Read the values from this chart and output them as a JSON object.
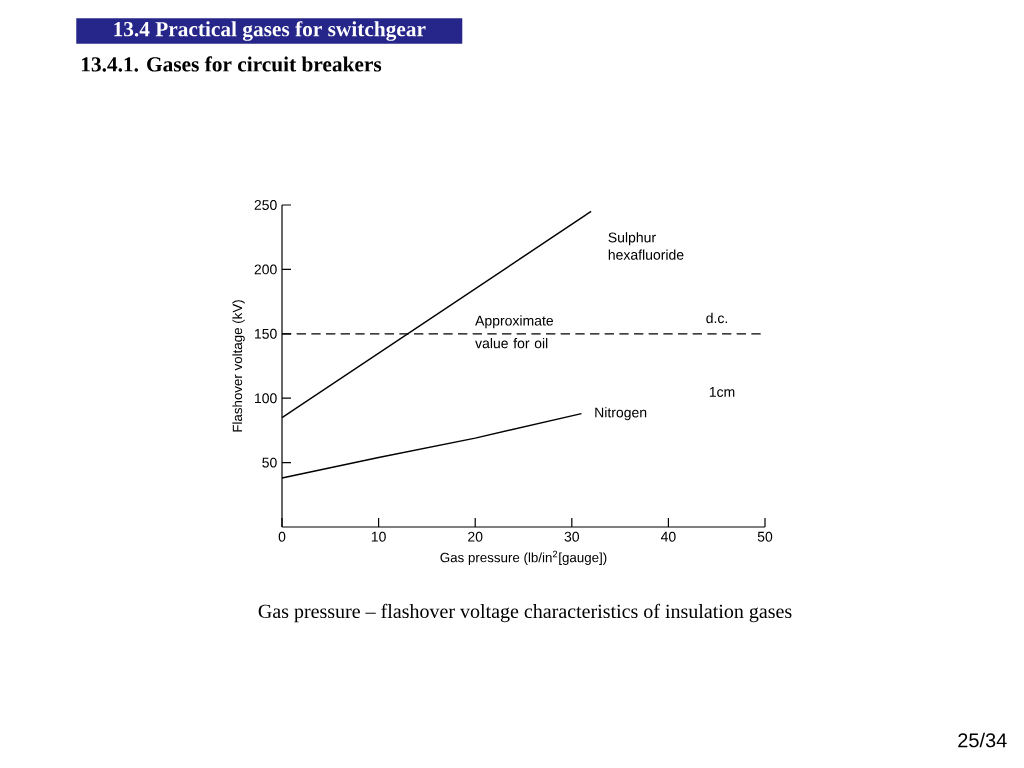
{
  "chart_data": {
    "type": "line",
    "title": "13.4 Practical gases for switchgear",
    "subtitle": "13.4.1. Gases for circuit breakers",
    "xlabel": "Gas pressure (lb/in$^{2}$[gauge])",
    "ylabel": "Flashover voltage (kV)",
    "series": [
      {
        "name": "Sulphur hexafluoride",
        "color": "#000000",
        "x": [
          0,
          32
        ],
        "values": [
          85,
          245
        ]
      },
      {
        "name": "Nitrogen",
        "color": "#000000",
        "x": [
          0,
          10,
          20,
          31
        ],
        "values": [
          38,
          54,
          69,
          88
        ]
      }
    ],
    "xlim": [
      0,
      50
    ],
    "ylim": [
      0,
      250
    ],
    "xticks": [
      0,
      10,
      20,
      30,
      40,
      50
    ],
    "yticks": [
      50,
      100,
      150,
      200,
      250
    ],
    "ref_lines": [
      {
        "axis": "y",
        "value": 150,
        "label": "Approximate value for oil",
        "color": "#000000",
        "line_style": "dashed"
      }
    ],
    "annotations": [
      "Gas pressure – flashover voltage characteristics of insulation gases",
      "d.c.",
      "1cm",
      "25/34"
    ],
    "marker": "none",
    "line_style": "solid"
  }
}
